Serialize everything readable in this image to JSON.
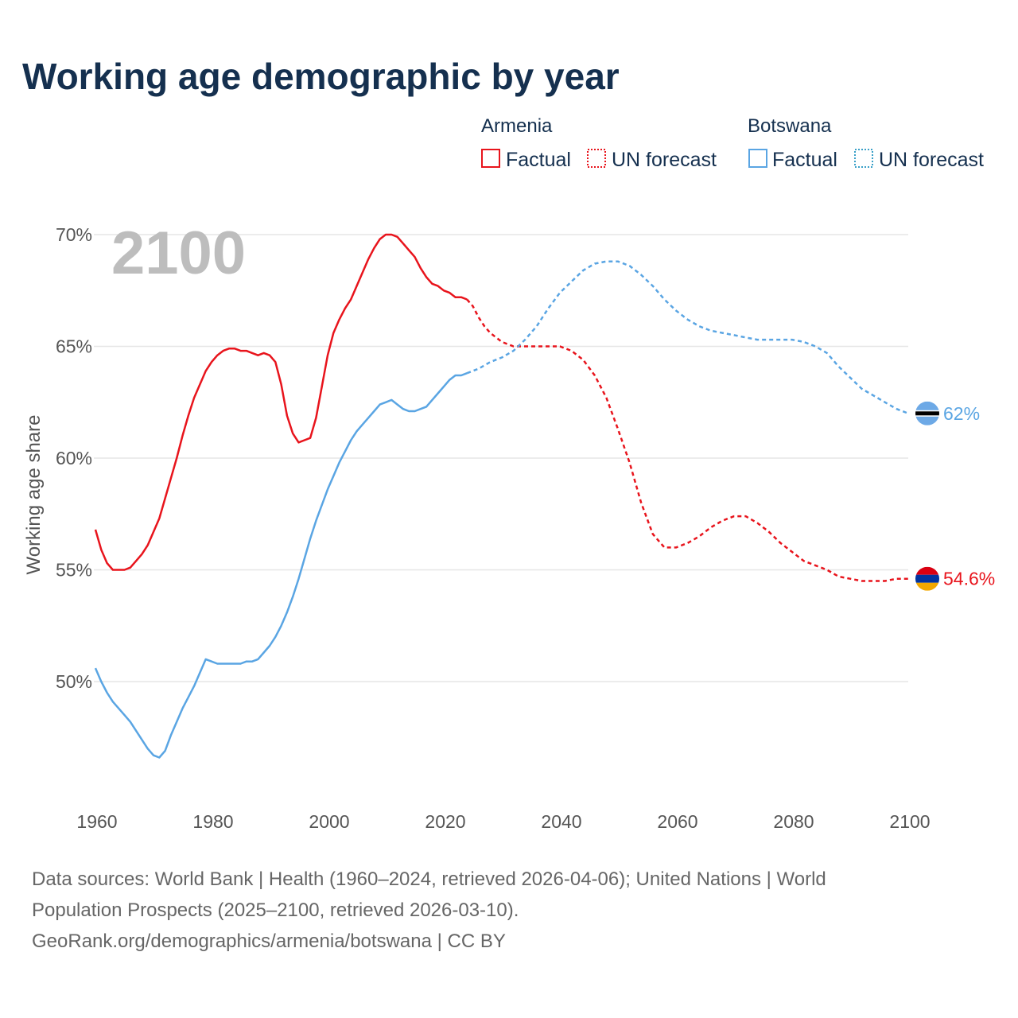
{
  "chart_data": {
    "type": "line",
    "title": "Working age demographic by year",
    "year_display": "2100",
    "ylabel": "Working age share",
    "xlabel": "",
    "xlim": [
      1960,
      2100
    ],
    "ylim": [
      45.5,
      71
    ],
    "x_ticks": [
      1960,
      1980,
      2000,
      2020,
      2040,
      2060,
      2080,
      2100
    ],
    "y_ticks": [
      50,
      55,
      60,
      65,
      70
    ],
    "y_tick_labels": [
      "50%",
      "55%",
      "60%",
      "65%",
      "70%"
    ],
    "grid": true,
    "legend": {
      "placement": "top-right",
      "groups": [
        {
          "name": "Armenia",
          "factual_label": "Factual",
          "forecast_label": "UN forecast",
          "color": "#e8141c"
        },
        {
          "name": "Botswana",
          "factual_label": "Factual",
          "forecast_label": "UN forecast",
          "color": "#5aa5e3"
        }
      ]
    },
    "series": [
      {
        "name": "Armenia",
        "color": "#e8141c",
        "factual_end_year": 2024,
        "end_label": "54.6%",
        "end_value": 54.6,
        "x": [
          1960,
          1961,
          1962,
          1963,
          1964,
          1965,
          1966,
          1967,
          1968,
          1969,
          1970,
          1971,
          1972,
          1973,
          1974,
          1975,
          1976,
          1977,
          1978,
          1979,
          1980,
          1981,
          1982,
          1983,
          1984,
          1985,
          1986,
          1987,
          1988,
          1989,
          1990,
          1991,
          1992,
          1993,
          1994,
          1995,
          1996,
          1997,
          1998,
          1999,
          2000,
          2001,
          2002,
          2003,
          2004,
          2005,
          2006,
          2007,
          2008,
          2009,
          2010,
          2011,
          2012,
          2013,
          2014,
          2015,
          2016,
          2017,
          2018,
          2019,
          2020,
          2021,
          2022,
          2023,
          2024,
          2025,
          2026,
          2027,
          2028,
          2030,
          2032,
          2035,
          2038,
          2040,
          2042,
          2044,
          2046,
          2048,
          2050,
          2052,
          2054,
          2056,
          2058,
          2060,
          2062,
          2064,
          2066,
          2068,
          2070,
          2072,
          2074,
          2076,
          2078,
          2080,
          2082,
          2084,
          2086,
          2088,
          2090,
          2092,
          2094,
          2096,
          2098,
          2100
        ],
        "values": [
          56.8,
          55.9,
          55.3,
          55.0,
          55.0,
          55.0,
          55.1,
          55.4,
          55.7,
          56.1,
          56.7,
          57.3,
          58.2,
          59.1,
          60.0,
          61.0,
          61.9,
          62.7,
          63.3,
          63.9,
          64.3,
          64.6,
          64.8,
          64.9,
          64.9,
          64.8,
          64.8,
          64.7,
          64.6,
          64.7,
          64.6,
          64.3,
          63.3,
          61.9,
          61.1,
          60.7,
          60.8,
          60.9,
          61.8,
          63.2,
          64.6,
          65.6,
          66.2,
          66.7,
          67.1,
          67.7,
          68.3,
          68.9,
          69.4,
          69.8,
          70.0,
          70.0,
          69.9,
          69.6,
          69.3,
          69.0,
          68.5,
          68.1,
          67.8,
          67.7,
          67.5,
          67.4,
          67.2,
          67.2,
          67.1,
          66.8,
          66.3,
          65.9,
          65.6,
          65.2,
          65.0,
          65.0,
          65.0,
          65.0,
          64.8,
          64.4,
          63.7,
          62.7,
          61.3,
          59.8,
          58.0,
          56.6,
          56.0,
          56.0,
          56.2,
          56.5,
          56.9,
          57.2,
          57.4,
          57.4,
          57.1,
          56.7,
          56.2,
          55.8,
          55.4,
          55.2,
          55.0,
          54.7,
          54.6,
          54.5,
          54.5,
          54.5,
          54.6,
          54.6
        ]
      },
      {
        "name": "Botswana",
        "color": "#5aa5e3",
        "factual_end_year": 2024,
        "end_label": "62%",
        "end_value": 62.0,
        "x": [
          1960,
          1961,
          1962,
          1963,
          1964,
          1965,
          1966,
          1967,
          1968,
          1969,
          1970,
          1971,
          1972,
          1973,
          1974,
          1975,
          1976,
          1977,
          1978,
          1979,
          1980,
          1981,
          1982,
          1983,
          1984,
          1985,
          1986,
          1987,
          1988,
          1989,
          1990,
          1991,
          1992,
          1993,
          1994,
          1995,
          1996,
          1997,
          1998,
          1999,
          2000,
          2001,
          2002,
          2003,
          2004,
          2005,
          2006,
          2007,
          2008,
          2009,
          2010,
          2011,
          2012,
          2013,
          2014,
          2015,
          2016,
          2017,
          2018,
          2019,
          2020,
          2021,
          2022,
          2023,
          2024,
          2026,
          2028,
          2030,
          2032,
          2034,
          2036,
          2038,
          2040,
          2042,
          2044,
          2046,
          2048,
          2050,
          2052,
          2054,
          2056,
          2058,
          2060,
          2062,
          2064,
          2066,
          2068,
          2070,
          2072,
          2074,
          2076,
          2078,
          2080,
          2082,
          2084,
          2086,
          2088,
          2090,
          2092,
          2094,
          2096,
          2098,
          2100
        ],
        "values": [
          50.6,
          50.0,
          49.5,
          49.1,
          48.8,
          48.5,
          48.2,
          47.8,
          47.4,
          47.0,
          46.7,
          46.6,
          46.9,
          47.6,
          48.2,
          48.8,
          49.3,
          49.8,
          50.4,
          51.0,
          50.9,
          50.8,
          50.8,
          50.8,
          50.8,
          50.8,
          50.9,
          50.9,
          51.0,
          51.3,
          51.6,
          52.0,
          52.5,
          53.1,
          53.8,
          54.6,
          55.5,
          56.4,
          57.2,
          57.9,
          58.6,
          59.2,
          59.8,
          60.3,
          60.8,
          61.2,
          61.5,
          61.8,
          62.1,
          62.4,
          62.5,
          62.6,
          62.4,
          62.2,
          62.1,
          62.1,
          62.2,
          62.3,
          62.6,
          62.9,
          63.2,
          63.5,
          63.7,
          63.7,
          63.8,
          64.0,
          64.3,
          64.5,
          64.8,
          65.3,
          65.9,
          66.7,
          67.4,
          67.9,
          68.4,
          68.7,
          68.8,
          68.8,
          68.6,
          68.2,
          67.7,
          67.1,
          66.6,
          66.2,
          65.9,
          65.7,
          65.6,
          65.5,
          65.4,
          65.3,
          65.3,
          65.3,
          65.3,
          65.2,
          65.0,
          64.7,
          64.1,
          63.6,
          63.1,
          62.8,
          62.5,
          62.2,
          62.0
        ]
      }
    ]
  },
  "footer": {
    "source_line1": "Data sources: World Bank | Health (1960–2024, retrieved 2026-04-06); United Nations | World",
    "source_line2": "Population Prospects (2025–2100, retrieved 2026-03-10).",
    "source_line3": "GeoRank.org/demographics/armenia/botswana | CC BY"
  }
}
